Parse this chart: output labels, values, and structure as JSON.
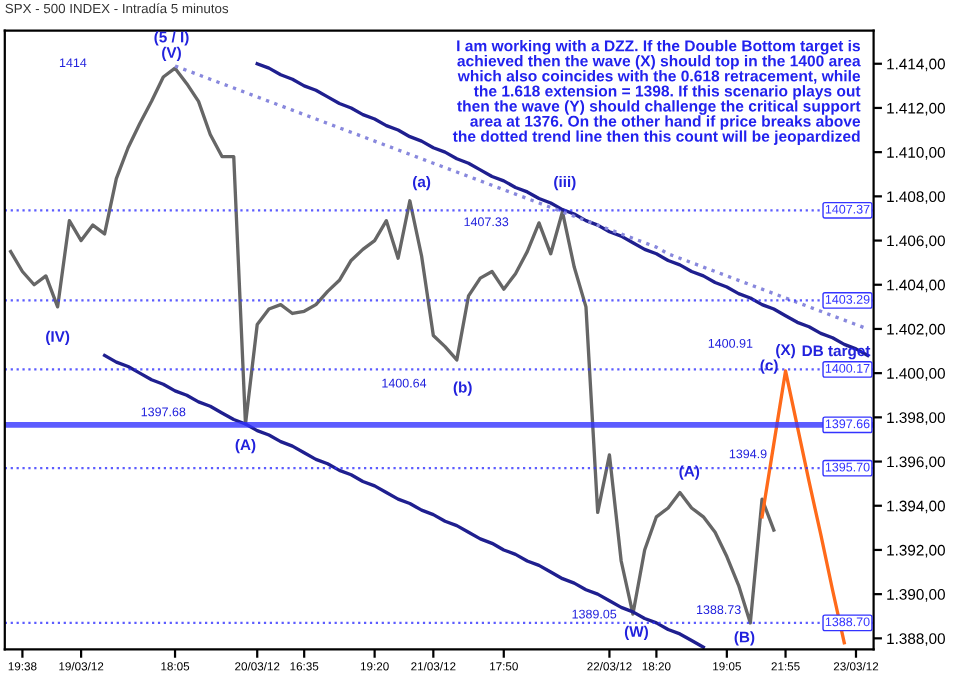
{
  "chart_data": {
    "type": "line",
    "title": "SPX - 500 INDEX - Intradía 5 minutos",
    "categories": [
      null,
      "19:38",
      null,
      null,
      null,
      null,
      "19/03/12",
      null,
      null,
      null,
      null,
      null,
      null,
      null,
      "18:05",
      null,
      null,
      null,
      null,
      null,
      null,
      "20/03/12",
      null,
      null,
      null,
      "16:35",
      null,
      null,
      null,
      null,
      null,
      "19:20",
      null,
      null,
      null,
      null,
      "21/03/12",
      null,
      null,
      null,
      null,
      null,
      "17:50",
      null,
      null,
      null,
      null,
      null,
      null,
      null,
      null,
      "22/03/12",
      null,
      null,
      null,
      "18:20",
      null,
      null,
      null,
      null,
      null,
      "19:05",
      null,
      null,
      null,
      null,
      "21:55",
      null,
      null,
      null,
      null,
      null,
      "23/03/12",
      null
    ],
    "ylim": [
      1387.5,
      1415.5
    ],
    "yticks": [
      {
        "value": 1388,
        "label": "1.388,00"
      },
      {
        "value": 1390,
        "label": "1.390,00"
      },
      {
        "value": 1392,
        "label": "1.392,00"
      },
      {
        "value": 1394,
        "label": "1.394,00"
      },
      {
        "value": 1396,
        "label": "1.396,00"
      },
      {
        "value": 1398,
        "label": "1.398,00"
      },
      {
        "value": 1400,
        "label": "1.400,00"
      },
      {
        "value": 1402,
        "label": "1.402,00"
      },
      {
        "value": 1404,
        "label": "1.404,00"
      },
      {
        "value": 1406,
        "label": "1.406,00"
      },
      {
        "value": 1408,
        "label": "1.408,00"
      },
      {
        "value": 1410,
        "label": "1.410,00"
      },
      {
        "value": 1412,
        "label": "1.412,00"
      },
      {
        "value": 1414,
        "label": "1.414,00"
      }
    ],
    "grid": false,
    "marker": "none",
    "series": [
      {
        "color": "#666666",
        "line_style": "solid",
        "values": [
          1405.5,
          1404.6,
          1404.0,
          1404.4,
          1403.0,
          1406.9,
          1406.0,
          1406.7,
          1406.3,
          1408.8,
          1410.2,
          1411.3,
          1412.3,
          1413.4,
          1413.8,
          1413.1,
          1412.3,
          1410.8,
          1409.8,
          1409.8,
          1397.7,
          1402.2,
          1402.9,
          1403.1,
          1402.7,
          1402.8,
          1403.1,
          1403.7,
          1404.2,
          1405.1,
          1405.6,
          1406.0,
          1406.9,
          1405.2,
          1407.8,
          1405.3,
          1401.7,
          1401.2,
          1400.6,
          1403.5,
          1404.3,
          1404.6,
          1403.8,
          1404.5,
          1405.5,
          1406.8,
          1405.4,
          1407.3,
          1404.8,
          1403.0,
          1393.7,
          1396.3,
          1391.5,
          1389.1,
          1392.0,
          1393.5,
          1393.9,
          1394.6,
          1393.9,
          1393.5,
          1392.8,
          1391.7,
          1390.4,
          1388.7,
          1394.3,
          1392.9,
          null,
          null,
          null,
          null,
          null,
          null,
          null,
          null
        ]
      },
      {
        "color": "#ff6a1a",
        "line_style": "solid",
        "values": [
          null,
          null,
          null,
          null,
          null,
          null,
          null,
          null,
          null,
          null,
          null,
          null,
          null,
          null,
          null,
          null,
          null,
          null,
          null,
          null,
          null,
          null,
          null,
          null,
          null,
          null,
          null,
          null,
          null,
          null,
          null,
          null,
          null,
          null,
          null,
          null,
          null,
          null,
          null,
          null,
          null,
          null,
          null,
          null,
          null,
          null,
          null,
          null,
          null,
          null,
          null,
          null,
          null,
          null,
          null,
          null,
          null,
          null,
          null,
          null,
          null,
          null,
          null,
          null,
          1393.5,
          1396.8,
          1400.1,
          1397.6,
          1395.1,
          1392.7,
          1390.2,
          1387.8,
          null,
          null
        ]
      },
      {
        "color": "#1f1f8f",
        "line_style": "solid",
        "values": [
          null,
          null,
          null,
          null,
          null,
          null,
          null,
          null,
          null,
          null,
          null,
          null,
          null,
          null,
          null,
          null,
          null,
          null,
          null,
          null,
          null,
          1414.0,
          1413.8,
          1413.5,
          1413.3,
          1413.0,
          1412.8,
          1412.5,
          1412.2,
          1412.0,
          1411.7,
          1411.5,
          1411.2,
          1411.0,
          1410.7,
          1410.5,
          1410.2,
          1410.0,
          1409.7,
          1409.5,
          1409.2,
          1408.9,
          1408.7,
          1408.4,
          1408.2,
          1407.9,
          1407.7,
          1407.4,
          1407.2,
          1406.9,
          1406.7,
          1406.4,
          1406.2,
          1405.9,
          1405.6,
          1405.4,
          1405.1,
          1404.9,
          1404.6,
          1404.4,
          1404.1,
          1403.9,
          1403.6,
          1403.4,
          1403.1,
          1402.9,
          1402.6,
          1402.3,
          1402.1,
          1401.8,
          1401.6,
          1401.3,
          1401.1,
          1400.8
        ]
      },
      {
        "color": "#1f1f8f",
        "line_style": "solid",
        "values": [
          null,
          null,
          null,
          null,
          null,
          null,
          null,
          null,
          1400.8,
          1400.5,
          1400.3,
          1400.0,
          1399.7,
          1399.5,
          1399.2,
          1399.0,
          1398.7,
          1398.5,
          1398.2,
          1397.9,
          1397.7,
          1397.4,
          1397.2,
          1396.9,
          1396.7,
          1396.4,
          1396.1,
          1395.9,
          1395.6,
          1395.4,
          1395.1,
          1394.9,
          1394.6,
          1394.3,
          1394.1,
          1393.8,
          1393.6,
          1393.3,
          1393.1,
          1392.8,
          1392.5,
          1392.3,
          1392.0,
          1391.8,
          1391.5,
          1391.3,
          1391.0,
          1390.7,
          1390.5,
          1390.2,
          1390.0,
          1389.7,
          1389.4,
          1389.2,
          1388.9,
          1388.7,
          1388.4,
          1388.2,
          1387.9,
          1387.6,
          null,
          null,
          null,
          null,
          null,
          null,
          null,
          null,
          null,
          null,
          null,
          null,
          null,
          null
        ]
      },
      {
        "color": "#8888dd",
        "line_style": "dotted",
        "values": [
          null,
          null,
          null,
          null,
          null,
          null,
          null,
          null,
          null,
          null,
          null,
          null,
          null,
          null,
          1413.9,
          1413.7,
          1413.5,
          1413.3,
          1413.1,
          1412.9,
          1412.7,
          1412.5,
          1412.3,
          1412.1,
          1411.9,
          1411.7,
          1411.5,
          1411.3,
          1411.1,
          1410.9,
          1410.7,
          1410.5,
          1410.3,
          1410.1,
          1409.9,
          1409.7,
          1409.5,
          1409.3,
          1409.1,
          1408.9,
          1408.7,
          1408.5,
          1408.3,
          1408.1,
          1407.9,
          1407.7,
          1407.5,
          1407.3,
          1407.1,
          1406.9,
          1406.7,
          1406.5,
          1406.3,
          1406.1,
          1405.9,
          1405.7,
          1405.4,
          1405.2,
          1405.0,
          1404.8,
          1404.6,
          1404.4,
          1404.2,
          1404.0,
          1403.8,
          1403.6,
          1403.4,
          1403.2,
          1403.0,
          1402.8,
          1402.6,
          1402.4,
          1402.2,
          1402.0
        ]
      }
    ],
    "ref_lines": [
      {
        "axis": "y",
        "value": 1407.37,
        "label": "1407.37",
        "color": "#3333ff",
        "line_style": "dotted"
      },
      {
        "axis": "y",
        "value": 1403.29,
        "label": "1403.29",
        "color": "#3333ff",
        "line_style": "dotted"
      },
      {
        "axis": "y",
        "value": 1400.17,
        "label": "1400.17",
        "color": "#3333ff",
        "line_style": "dotted"
      },
      {
        "axis": "y",
        "value": 1397.66,
        "label": "1397.66",
        "color": "#3333ff",
        "line_style": "solid"
      },
      {
        "axis": "y",
        "value": 1395.7,
        "label": "1395.70",
        "color": "#3333ff",
        "line_style": "dotted"
      },
      {
        "axis": "y",
        "value": 1388.7,
        "label": "1388.70",
        "color": "#3333ff",
        "line_style": "dotted"
      }
    ],
    "annotations": [
      "I am working with a DZZ. If the Double Bottom target is\nachieved then the wave (X) should top in the 1400 area\nwhich also coincides with the 0.618 retracement, while\nthe 1.618 extension = 1398. If this scenario plays out\nthen the wave (Y) should challenge the critical support\narea at 1376. On the other hand if price breaks above\nthe dotted trend line then this count will be jeopardized",
      "(5 / I)",
      "(V)",
      "(IV)",
      "(A)",
      "(a)",
      "(b)",
      "(iii)",
      "(W)",
      "(A)",
      "(B)",
      "(X)",
      "(c)",
      "DB target",
      "1414",
      "1397.68",
      "1407.33",
      "1400.64",
      "1389.05",
      "1388.73",
      "1400.91",
      "1394.9"
    ]
  }
}
